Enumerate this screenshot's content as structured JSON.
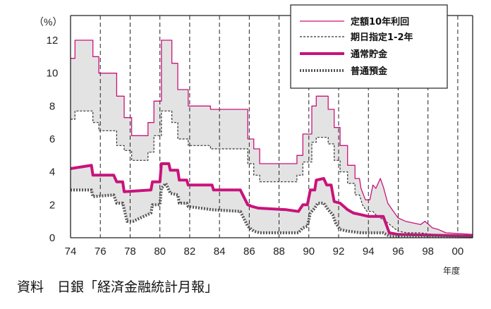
{
  "chart_data": {
    "type": "line",
    "y_unit": "（%）",
    "x_unit": "年度",
    "xlim": [
      1974,
      2001
    ],
    "ylim": [
      0,
      13.5
    ],
    "x_ticks": [
      {
        "value": 1974,
        "label": "74"
      },
      {
        "value": 1976,
        "label": "76"
      },
      {
        "value": 1978,
        "label": "78"
      },
      {
        "value": 1980,
        "label": "80"
      },
      {
        "value": 1982,
        "label": "82"
      },
      {
        "value": 1984,
        "label": "84"
      },
      {
        "value": 1986,
        "label": "86"
      },
      {
        "value": 1988,
        "label": "88"
      },
      {
        "value": 1990,
        "label": "90"
      },
      {
        "value": 1992,
        "label": "92"
      },
      {
        "value": 1994,
        "label": "94"
      },
      {
        "value": 1996,
        "label": "96"
      },
      {
        "value": 1998,
        "label": "98"
      },
      {
        "value": 2000,
        "label": "00"
      }
    ],
    "y_ticks": [
      {
        "value": 0,
        "label": "0"
      },
      {
        "value": 2,
        "label": "2"
      },
      {
        "value": 4,
        "label": "4"
      },
      {
        "value": 6,
        "label": "6"
      },
      {
        "value": 8,
        "label": "8"
      },
      {
        "value": 10,
        "label": "10"
      },
      {
        "value": 12,
        "label": "12"
      }
    ],
    "vertical_gridlines": "dashed at each 2-year tick",
    "legend_position": "top-right",
    "shading": "gray band between 定額10年利回 and 期日指定1-2年, and between 通常貯金 and 普通預金",
    "series": [
      {
        "name": "定額10年利回",
        "style": "thin-solid",
        "color": "#c8137b",
        "points": [
          [
            1974,
            10.9
          ],
          [
            1974.3,
            10.9
          ],
          [
            1974.3,
            12.0
          ],
          [
            1975.5,
            12.0
          ],
          [
            1975.5,
            11.0
          ],
          [
            1975.9,
            11.0
          ],
          [
            1975.9,
            10.0
          ],
          [
            1977.1,
            10.0
          ],
          [
            1977.1,
            8.6
          ],
          [
            1977.6,
            8.6
          ],
          [
            1977.6,
            7.3
          ],
          [
            1978.1,
            7.3
          ],
          [
            1978.1,
            6.2
          ],
          [
            1979.2,
            6.2
          ],
          [
            1979.2,
            7.0
          ],
          [
            1979.6,
            7.0
          ],
          [
            1979.6,
            8.3
          ],
          [
            1980.1,
            8.3
          ],
          [
            1980.1,
            12.0
          ],
          [
            1980.8,
            12.0
          ],
          [
            1980.8,
            10.6
          ],
          [
            1981.2,
            10.6
          ],
          [
            1981.2,
            9.0
          ],
          [
            1981.9,
            9.0
          ],
          [
            1981.9,
            8.0
          ],
          [
            1983.4,
            8.0
          ],
          [
            1983.4,
            7.8
          ],
          [
            1985.9,
            7.8
          ],
          [
            1985.9,
            6.0
          ],
          [
            1986.3,
            6.0
          ],
          [
            1986.3,
            5.4
          ],
          [
            1986.7,
            5.4
          ],
          [
            1986.7,
            4.5
          ],
          [
            1989.2,
            4.5
          ],
          [
            1989.2,
            5.0
          ],
          [
            1989.6,
            5.0
          ],
          [
            1989.6,
            6.3
          ],
          [
            1990.2,
            6.3
          ],
          [
            1990.2,
            8.0
          ],
          [
            1990.5,
            8.0
          ],
          [
            1990.5,
            8.6
          ],
          [
            1991.3,
            8.6
          ],
          [
            1991.3,
            7.8
          ],
          [
            1991.7,
            7.8
          ],
          [
            1991.7,
            6.7
          ],
          [
            1992.1,
            6.7
          ],
          [
            1992.1,
            5.6
          ],
          [
            1992.6,
            5.6
          ],
          [
            1992.6,
            4.4
          ],
          [
            1993.1,
            4.4
          ],
          [
            1993.1,
            3.6
          ],
          [
            1993.4,
            3.6
          ],
          [
            1993.5,
            3.0
          ],
          [
            1993.8,
            2.3
          ],
          [
            1994.1,
            2.3
          ],
          [
            1994.3,
            3.2
          ],
          [
            1994.5,
            3.0
          ],
          [
            1994.8,
            3.6
          ],
          [
            1995.0,
            3.1
          ],
          [
            1995.3,
            2.1
          ],
          [
            1995.6,
            1.7
          ],
          [
            1996.0,
            1.2
          ],
          [
            1996.5,
            1.0
          ],
          [
            1997.0,
            0.9
          ],
          [
            1997.5,
            0.8
          ],
          [
            1997.8,
            1.0
          ],
          [
            1998.3,
            0.6
          ],
          [
            1998.7,
            0.5
          ],
          [
            1999.2,
            0.3
          ],
          [
            2001,
            0.2
          ]
        ]
      },
      {
        "name": "期日指定1-2年",
        "style": "thin-dashed",
        "color": "#333333",
        "points": [
          [
            1974,
            7.2
          ],
          [
            1974.3,
            7.2
          ],
          [
            1974.3,
            7.7
          ],
          [
            1975.5,
            7.7
          ],
          [
            1975.5,
            7.0
          ],
          [
            1975.9,
            7.0
          ],
          [
            1975.9,
            6.5
          ],
          [
            1977.1,
            6.5
          ],
          [
            1977.1,
            5.6
          ],
          [
            1977.6,
            5.6
          ],
          [
            1977.6,
            5.3
          ],
          [
            1978.1,
            5.3
          ],
          [
            1978.1,
            4.7
          ],
          [
            1979.2,
            4.7
          ],
          [
            1979.2,
            5.2
          ],
          [
            1979.6,
            5.2
          ],
          [
            1979.6,
            6.2
          ],
          [
            1980.1,
            6.2
          ],
          [
            1980.1,
            7.7
          ],
          [
            1980.8,
            7.7
          ],
          [
            1980.8,
            7.0
          ],
          [
            1981.2,
            7.0
          ],
          [
            1981.2,
            6.0
          ],
          [
            1981.9,
            6.0
          ],
          [
            1981.9,
            5.6
          ],
          [
            1983.4,
            5.6
          ],
          [
            1983.4,
            5.4
          ],
          [
            1985.9,
            5.4
          ],
          [
            1985.9,
            4.5
          ],
          [
            1986.3,
            4.5
          ],
          [
            1986.3,
            3.8
          ],
          [
            1986.7,
            3.8
          ],
          [
            1986.7,
            3.4
          ],
          [
            1989.2,
            3.4
          ],
          [
            1989.2,
            3.8
          ],
          [
            1989.6,
            3.8
          ],
          [
            1989.6,
            4.6
          ],
          [
            1990.2,
            4.6
          ],
          [
            1990.2,
            5.8
          ],
          [
            1990.5,
            5.8
          ],
          [
            1990.5,
            6.1
          ],
          [
            1991.3,
            6.1
          ],
          [
            1991.3,
            5.7
          ],
          [
            1991.7,
            5.7
          ],
          [
            1991.7,
            4.7
          ],
          [
            1992.1,
            4.7
          ],
          [
            1992.1,
            4.0
          ],
          [
            1992.6,
            4.0
          ],
          [
            1992.6,
            3.3
          ],
          [
            1993.1,
            3.3
          ],
          [
            1993.1,
            2.6
          ],
          [
            1993.4,
            2.6
          ],
          [
            1993.6,
            2.0
          ],
          [
            1993.9,
            1.6
          ],
          [
            1994.3,
            1.6
          ],
          [
            1994.6,
            1.3
          ],
          [
            1995.0,
            1.1
          ],
          [
            1995.3,
            0.9
          ],
          [
            1995.7,
            0.6
          ],
          [
            1996.0,
            0.4
          ],
          [
            1996.6,
            0.3
          ],
          [
            1997.5,
            0.3
          ],
          [
            1998.3,
            0.2
          ],
          [
            2001,
            0.15
          ]
        ]
      },
      {
        "name": "通常貯金",
        "style": "thick-solid",
        "color": "#c8137b",
        "points": [
          [
            1974,
            4.2
          ],
          [
            1975.4,
            4.4
          ],
          [
            1975.5,
            3.8
          ],
          [
            1976.9,
            3.8
          ],
          [
            1977.1,
            3.4
          ],
          [
            1977.5,
            3.4
          ],
          [
            1977.6,
            2.8
          ],
          [
            1979.4,
            2.9
          ],
          [
            1979.5,
            3.4
          ],
          [
            1980.0,
            3.4
          ],
          [
            1980.1,
            4.5
          ],
          [
            1980.6,
            4.5
          ],
          [
            1980.7,
            4.1
          ],
          [
            1981.2,
            4.1
          ],
          [
            1981.3,
            3.5
          ],
          [
            1981.8,
            3.5
          ],
          [
            1981.9,
            3.2
          ],
          [
            1983.5,
            3.2
          ],
          [
            1983.6,
            2.9
          ],
          [
            1985.4,
            2.9
          ],
          [
            1985.9,
            2.0
          ],
          [
            1986.2,
            1.9
          ],
          [
            1986.6,
            1.8
          ],
          [
            1988.5,
            1.7
          ],
          [
            1989.3,
            1.6
          ],
          [
            1989.6,
            2.0
          ],
          [
            1989.9,
            2.0
          ],
          [
            1990.1,
            2.9
          ],
          [
            1990.4,
            2.9
          ],
          [
            1990.5,
            3.5
          ],
          [
            1991.0,
            3.6
          ],
          [
            1991.2,
            3.2
          ],
          [
            1991.5,
            3.2
          ],
          [
            1991.7,
            2.2
          ],
          [
            1992.1,
            2.1
          ],
          [
            1992.6,
            1.7
          ],
          [
            1993.0,
            1.5
          ],
          [
            1993.5,
            1.4
          ],
          [
            1994.0,
            1.3
          ],
          [
            1995.0,
            1.3
          ],
          [
            1995.4,
            0.3
          ],
          [
            1996.0,
            0.2
          ],
          [
            2001,
            0.1
          ]
        ]
      },
      {
        "name": "普通預金",
        "style": "thick-dotted",
        "color": "#555555",
        "points": [
          [
            1974,
            2.9
          ],
          [
            1975.4,
            2.9
          ],
          [
            1975.5,
            2.5
          ],
          [
            1976.9,
            2.6
          ],
          [
            1977.1,
            2.1
          ],
          [
            1977.5,
            2.1
          ],
          [
            1977.8,
            1.0
          ],
          [
            1978.2,
            1.0
          ],
          [
            1979.4,
            1.5
          ],
          [
            1979.5,
            2.0
          ],
          [
            1980.0,
            2.0
          ],
          [
            1980.1,
            3.0
          ],
          [
            1980.4,
            3.3
          ],
          [
            1980.7,
            2.7
          ],
          [
            1981.2,
            2.6
          ],
          [
            1981.3,
            2.1
          ],
          [
            1981.8,
            2.1
          ],
          [
            1981.9,
            1.9
          ],
          [
            1983.5,
            1.7
          ],
          [
            1985.4,
            1.6
          ],
          [
            1985.9,
            0.7
          ],
          [
            1986.3,
            0.4
          ],
          [
            1986.7,
            0.3
          ],
          [
            1989.3,
            0.3
          ],
          [
            1989.6,
            0.6
          ],
          [
            1989.9,
            0.7
          ],
          [
            1990.1,
            1.5
          ],
          [
            1990.4,
            1.8
          ],
          [
            1990.6,
            2.1
          ],
          [
            1991.0,
            2.1
          ],
          [
            1991.3,
            1.7
          ],
          [
            1991.6,
            1.4
          ],
          [
            1991.8,
            0.9
          ],
          [
            1992.1,
            0.5
          ],
          [
            1992.6,
            0.4
          ],
          [
            1993.5,
            0.3
          ],
          [
            1995.0,
            0.3
          ],
          [
            1995.4,
            0.1
          ],
          [
            2001,
            0.05
          ]
        ]
      }
    ]
  },
  "source_note": "資料　日銀「経済金融統計月報」"
}
